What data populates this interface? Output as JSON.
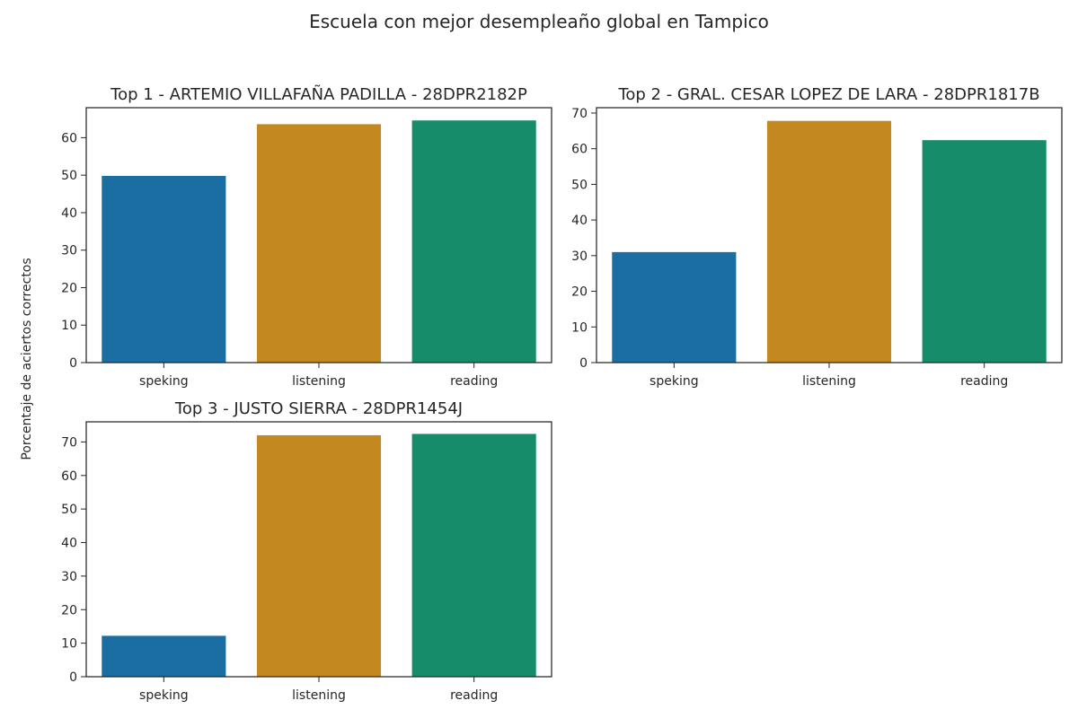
{
  "suptitle": "Escuela con mejor desempleaño global en Tampico",
  "ylabel": "Porcentaje de aciertos correctos",
  "colors": [
    "#1a6ea1",
    "#c48820",
    "#178c6a"
  ],
  "chart_data": [
    {
      "type": "bar",
      "title": "Top  1 - ARTEMIO VILLAFAÑA PADILLA - 28DPR2182P",
      "categories": [
        "speking",
        "listening",
        "reading"
      ],
      "values": [
        49.8,
        63.6,
        64.6
      ],
      "ylim": [
        0,
        68
      ],
      "yticks": [
        0,
        10,
        20,
        30,
        40,
        50,
        60
      ],
      "grid": false
    },
    {
      "type": "bar",
      "title": "Top  2 - GRAL. CESAR LOPEZ DE LARA - 28DPR1817B",
      "categories": [
        "speking",
        "listening",
        "reading"
      ],
      "values": [
        31.0,
        67.8,
        62.4
      ],
      "ylim": [
        0,
        71.5
      ],
      "yticks": [
        0,
        10,
        20,
        30,
        40,
        50,
        60,
        70
      ],
      "grid": false
    },
    {
      "type": "bar",
      "title": "Top  3 - JUSTO SIERRA - 28DPR1454J",
      "categories": [
        "speking",
        "listening",
        "reading"
      ],
      "values": [
        12.2,
        72.0,
        72.4
      ],
      "ylim": [
        0,
        76
      ],
      "yticks": [
        0,
        10,
        20,
        30,
        40,
        50,
        60,
        70
      ],
      "grid": false
    }
  ]
}
